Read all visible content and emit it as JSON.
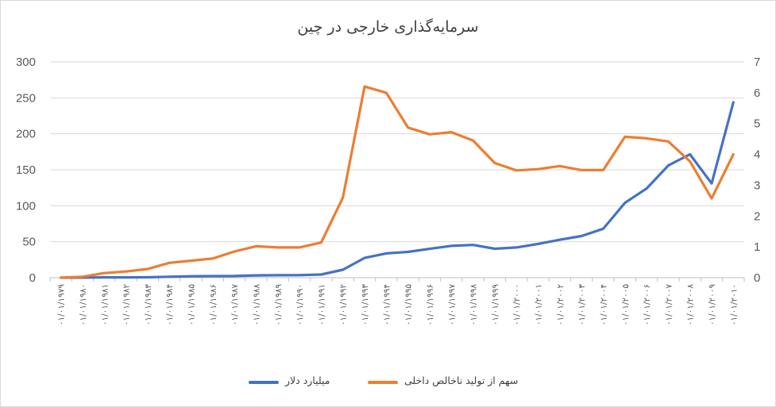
{
  "chart_data": {
    "type": "line",
    "title": "سرمایه‌گذاری خارجی در چین",
    "x": [
      "۰۱/۰۱/۱۹۷۹",
      "۰۱/۰۱/۱۹۸۰",
      "۰۱/۰۱/۱۹۸۱",
      "۰۱/۰۱/۱۹۸۲",
      "۰۱/۰۱/۱۹۸۳",
      "۰۱/۰۱/۱۹۸۴",
      "۰۱/۰۱/۱۹۸۵",
      "۰۱/۰۱/۱۹۸۶",
      "۰۱/۰۱/۱۹۸۷",
      "۰۱/۰۱/۱۹۸۸",
      "۰۱/۰۱/۱۹۸۹",
      "۰۱/۰۱/۱۹۹۰",
      "۰۱/۰۱/۱۹۹۱",
      "۰۱/۰۱/۱۹۹۲",
      "۰۱/۰۱/۱۹۹۳",
      "۰۱/۰۱/۱۹۹۴",
      "۰۱/۰۱/۱۹۹۵",
      "۰۱/۰۱/۱۹۹۶",
      "۰۱/۰۱/۱۹۹۷",
      "۰۱/۰۱/۱۹۹۸",
      "۰۱/۰۱/۱۹۹۹",
      "۰۱/۰۱/۲۰۰۰",
      "۰۱/۰۱/۲۰۰۱",
      "۰۱/۰۱/۲۰۰۲",
      "۰۱/۰۱/۲۰۰۳",
      "۰۱/۰۱/۲۰۰۴",
      "۰۱/۰۱/۲۰۰۵",
      "۰۱/۰۱/۲۰۰۶",
      "۰۱/۰۱/۲۰۰۷",
      "۰۱/۰۱/۲۰۰۸",
      "۰۱/۰۱/۲۰۰۹",
      "۰۱/۰۱/۲۰۱۰"
    ],
    "series": [
      {
        "name": "میلیارد دلار",
        "axis": "left",
        "color": "#4472C4",
        "values": [
          0,
          0.1,
          0.4,
          0.4,
          0.6,
          1.3,
          2,
          2.2,
          2.3,
          3.2,
          3.4,
          3.5,
          4.4,
          11,
          27.5,
          33.8,
          35.8,
          40.2,
          44.2,
          45.5,
          40.3,
          42,
          47,
          52.7,
          57.9,
          68,
          104,
          124,
          156,
          171.5,
          131,
          243.7
        ]
      },
      {
        "name": "سهم از تولید ناخالص داخلی",
        "axis": "right",
        "color": "#ED7D31",
        "values": [
          0,
          0.03,
          0.15,
          0.2,
          0.28,
          0.48,
          0.55,
          0.62,
          0.85,
          1.02,
          0.98,
          0.98,
          1.14,
          2.6,
          6.2,
          6,
          4.87,
          4.65,
          4.72,
          4.45,
          3.72,
          3.48,
          3.52,
          3.62,
          3.49,
          3.49,
          4.57,
          4.52,
          4.42,
          3.77,
          2.57,
          4
        ]
      }
    ],
    "y_left": {
      "ticks": [
        "0",
        "50",
        "100",
        "150",
        "200",
        "250",
        "300"
      ],
      "ylim": [
        0,
        300
      ]
    },
    "y_right": {
      "ticks": [
        "0",
        "1",
        "2",
        "3",
        "4",
        "5",
        "6",
        "7"
      ],
      "ylim": [
        0,
        7
      ]
    },
    "grid": true,
    "legend_position": "bottom"
  }
}
